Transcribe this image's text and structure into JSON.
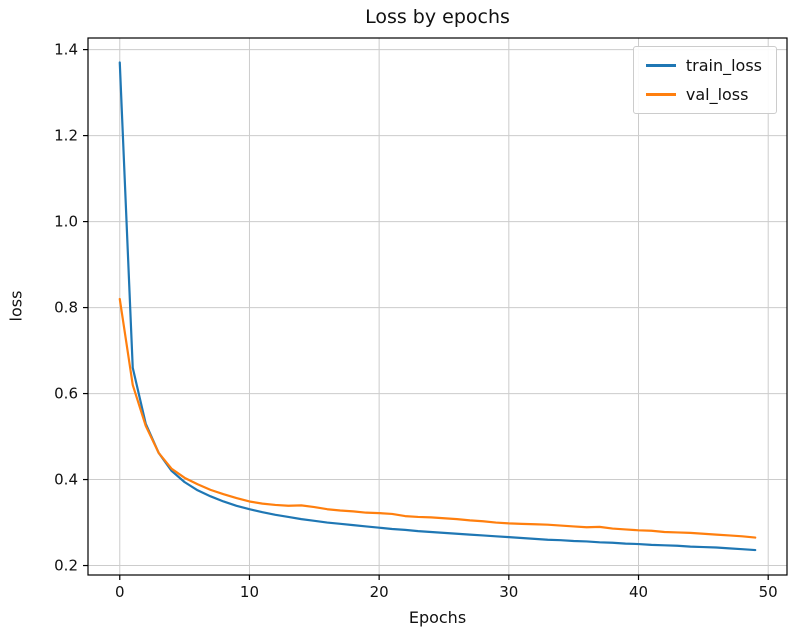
{
  "figure": {
    "title": "Loss by epochs"
  },
  "chart_data": {
    "type": "line",
    "title": "Loss by epochs",
    "xlabel": "Epochs",
    "ylabel": "loss",
    "xlim": [
      -2.45,
      51.45
    ],
    "ylim": [
      0.178,
      1.427
    ],
    "xticks": [
      0,
      10,
      20,
      30,
      40,
      50
    ],
    "yticks": [
      0.2,
      0.4,
      0.6,
      0.8,
      1.0,
      1.2,
      1.4
    ],
    "grid": true,
    "grid_color": "#cccccc",
    "spine_color": "#000000",
    "legend_position": "upper right",
    "x": [
      0,
      1,
      2,
      3,
      4,
      5,
      6,
      7,
      8,
      9,
      10,
      11,
      12,
      13,
      14,
      15,
      16,
      17,
      18,
      19,
      20,
      21,
      22,
      23,
      24,
      25,
      26,
      27,
      28,
      29,
      30,
      31,
      32,
      33,
      34,
      35,
      36,
      37,
      38,
      39,
      40,
      41,
      42,
      43,
      44,
      45,
      46,
      47,
      48,
      49
    ],
    "series": [
      {
        "name": "train_loss",
        "color": "#1f77b4",
        "values": [
          1.37,
          0.66,
          0.53,
          0.462,
          0.42,
          0.394,
          0.375,
          0.361,
          0.349,
          0.339,
          0.331,
          0.324,
          0.318,
          0.313,
          0.308,
          0.304,
          0.3,
          0.297,
          0.294,
          0.291,
          0.288,
          0.285,
          0.283,
          0.28,
          0.278,
          0.276,
          0.274,
          0.272,
          0.27,
          0.268,
          0.266,
          0.264,
          0.262,
          0.26,
          0.259,
          0.257,
          0.256,
          0.254,
          0.253,
          0.251,
          0.25,
          0.248,
          0.247,
          0.246,
          0.244,
          0.243,
          0.242,
          0.24,
          0.238,
          0.236
        ]
      },
      {
        "name": "val_loss",
        "color": "#ff7f0e",
        "values": [
          0.82,
          0.62,
          0.525,
          0.462,
          0.425,
          0.404,
          0.389,
          0.376,
          0.366,
          0.357,
          0.349,
          0.344,
          0.341,
          0.339,
          0.34,
          0.336,
          0.331,
          0.328,
          0.326,
          0.323,
          0.322,
          0.32,
          0.315,
          0.313,
          0.312,
          0.31,
          0.308,
          0.305,
          0.303,
          0.3,
          0.298,
          0.297,
          0.296,
          0.295,
          0.293,
          0.291,
          0.289,
          0.29,
          0.286,
          0.284,
          0.282,
          0.281,
          0.278,
          0.277,
          0.276,
          0.274,
          0.272,
          0.27,
          0.268,
          0.265
        ]
      }
    ]
  }
}
